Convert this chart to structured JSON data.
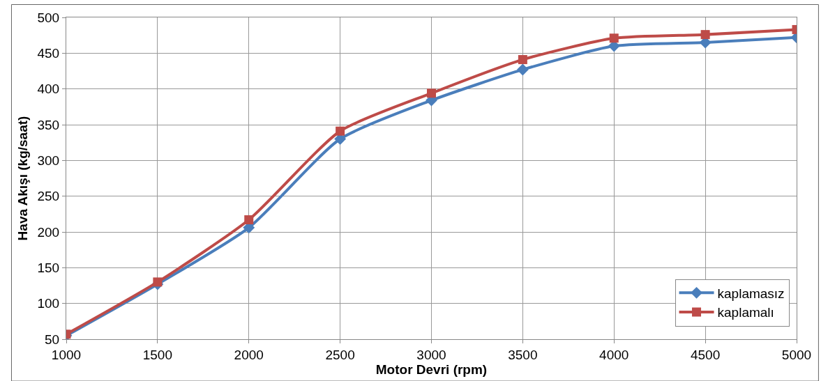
{
  "chart_data": {
    "type": "line",
    "xlabel": "Motor Devri (rpm)",
    "ylabel": "Hava Akışı (kg/saat)",
    "x": [
      1000,
      1500,
      2000,
      2500,
      3000,
      3500,
      4000,
      4500,
      5000
    ],
    "series": [
      {
        "name": "kaplamasız",
        "color": "#4a7ebb",
        "marker": "diamond",
        "values": [
          55,
          127,
          206,
          330,
          384,
          427,
          460,
          465,
          472
        ]
      },
      {
        "name": "kaplamalı",
        "color": "#be4b48",
        "marker": "square",
        "values": [
          57,
          130,
          217,
          341,
          394,
          441,
          471,
          476,
          483
        ]
      }
    ],
    "xlim": [
      1000,
      5000
    ],
    "xticks": [
      1000,
      1500,
      2000,
      2500,
      3000,
      3500,
      4000,
      4500,
      5000
    ],
    "ylim": [
      50,
      500
    ],
    "yticks": [
      50,
      100,
      150,
      200,
      250,
      300,
      350,
      400,
      450,
      500
    ],
    "grid": true,
    "legend": "bottom right",
    "line_style": "solid"
  }
}
